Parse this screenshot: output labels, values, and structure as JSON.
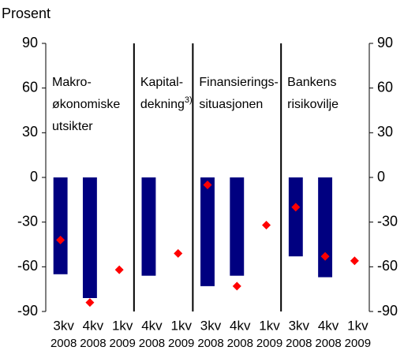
{
  "chart_data": {
    "type": "bar",
    "ylabel": "Prosent",
    "ylim": [
      -90,
      90
    ],
    "yticks": [
      -90,
      -60,
      -30,
      0,
      30,
      60,
      90
    ],
    "y2lim": [
      -90,
      90
    ],
    "y2ticks": [
      -90,
      -60,
      -30,
      0,
      30,
      60,
      90
    ],
    "groups": [
      {
        "label": [
          "Makro-",
          "økonomiske",
          "utsikter"
        ],
        "categories": [
          [
            "3kv",
            "2008"
          ],
          [
            "4kv",
            "2008"
          ],
          [
            "1kv",
            "2009"
          ]
        ]
      },
      {
        "label": [
          "Kapital-",
          "dekning"
        ],
        "footnote": "3)",
        "categories": [
          [
            "4kv",
            "2008"
          ],
          [
            "1kv",
            "2009"
          ]
        ]
      },
      {
        "label": [
          "Finansierings-",
          "situasjonen"
        ],
        "categories": [
          [
            "3kv",
            "2008"
          ],
          [
            "4kv",
            "2008"
          ],
          [
            "1kv",
            "2009"
          ]
        ]
      },
      {
        "label": [
          "Bankens",
          "risikovilje"
        ],
        "categories": [
          [
            "3kv",
            "2008"
          ],
          [
            "4kv",
            "2008"
          ],
          [
            "1kv",
            "2009"
          ]
        ]
      }
    ],
    "series": [
      {
        "type": "bar",
        "color": "#000080",
        "values": [
          -65,
          -81,
          null,
          -66,
          null,
          -73,
          -66,
          null,
          -53,
          -67,
          null
        ]
      },
      {
        "type": "scatter",
        "color": "#ff0000",
        "values": [
          -42,
          -84,
          -62,
          null,
          -51,
          -5,
          -73,
          -32,
          -20,
          -53,
          -56
        ]
      }
    ]
  }
}
